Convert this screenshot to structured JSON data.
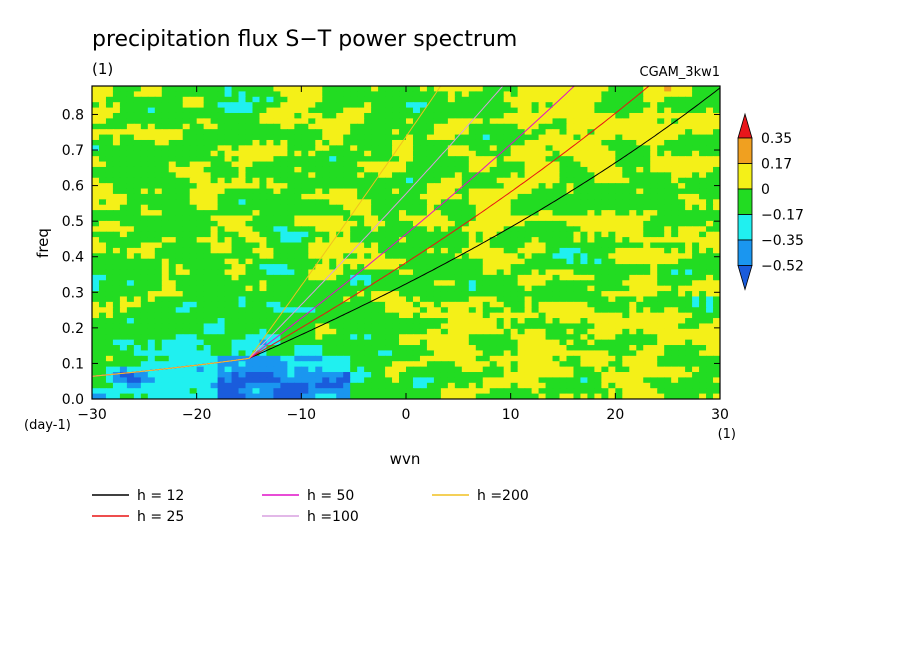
{
  "chart_data": {
    "type": "heatmap",
    "title": "precipitation flux S−T power spectrum",
    "units_left": "(1)",
    "dataset_label": "CGAM_3kw1",
    "xlabel": "wvn",
    "ylabel": "freq",
    "x_unit": "(1)",
    "y_unit": "(day-1)",
    "xlim": [
      -30,
      30
    ],
    "ylim": [
      0,
      0.88
    ],
    "x_ticks": [
      -30,
      -20,
      -10,
      0,
      10,
      20,
      30
    ],
    "y_ticks": [
      0.0,
      0.1,
      0.2,
      0.3,
      0.4,
      0.5,
      0.6,
      0.7,
      0.8
    ],
    "x_tick_labels": [
      "−30",
      "−20",
      "−10",
      "0",
      "10",
      "20",
      "30"
    ],
    "y_tick_labels": [
      "0.0",
      "0.1",
      "0.2",
      "0.3",
      "0.4",
      "0.5",
      "0.6",
      "0.7",
      "0.8"
    ],
    "colorbar": {
      "levels": [
        "0.35",
        "0.17",
        "0",
        "−0.17",
        "−0.35",
        "−0.52"
      ],
      "colors": [
        "#e8161b",
        "#f0a020",
        "#f4f018",
        "#22dc22",
        "#20f0f0",
        "#1a96f0",
        "#1a5cdc"
      ]
    },
    "dispersion_curves": [
      {
        "name": "h = 12",
        "h": 12,
        "color": "#000000"
      },
      {
        "name": "h = 25",
        "h": 25,
        "color": "#e81414"
      },
      {
        "name": "h = 50",
        "h": 50,
        "color": "#e010c8"
      },
      {
        "name": "h =100",
        "h": 100,
        "color": "#d8a0e0"
      },
      {
        "name": "h =200",
        "h": 200,
        "color": "#f0c020"
      }
    ]
  }
}
